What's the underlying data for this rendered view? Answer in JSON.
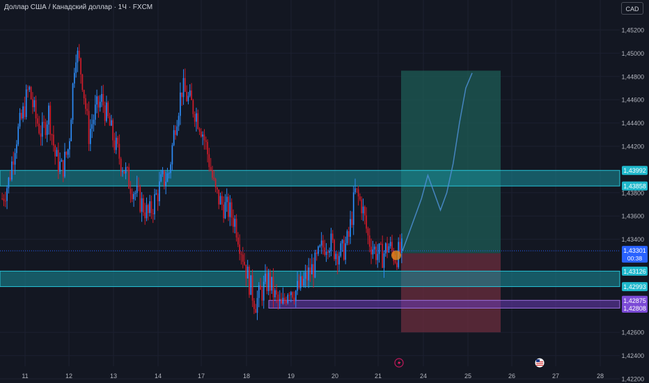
{
  "header": {
    "title": "Доллар США / Канадский доллар · 1Ч · FXCM",
    "currency": "CAD"
  },
  "colors": {
    "background": "#131722",
    "grid": "#1c2030",
    "up_candle": "#2d8bf5",
    "down_candle": "#d01c2a",
    "zone_fill": "#1a8f9c",
    "zone_border": "#26c6da",
    "support_zone_fill": "#6a3ab5",
    "support_zone_border": "#9c6fe0",
    "target_fill": "#1d5c55",
    "stop_fill": "#6b2d3d",
    "projection": "#4d8fd6",
    "last_price": "#2962ff",
    "axis_text": "#b2b5be"
  },
  "price_axis": {
    "ticks": [
      "1,45200",
      "1,45000",
      "1,44800",
      "1,44600",
      "1,44400",
      "1,44200",
      "1,43800",
      "1,43600",
      "1,43400",
      "1,42600",
      "1,42400",
      "1,42200"
    ],
    "labels": [
      {
        "text": "1,43992",
        "color": "#1fb8cc",
        "value": 1.43992
      },
      {
        "text": "1,43858",
        "color": "#1fb8cc",
        "value": 1.43858
      },
      {
        "text": "1,43126",
        "color": "#1fb8cc",
        "value": 1.43126
      },
      {
        "text": "1,42993",
        "color": "#1fb8cc",
        "value": 1.42993
      },
      {
        "text": "1,42875",
        "color": "#7b4bd6",
        "value": 1.42875
      },
      {
        "text": "1,42808",
        "color": "#7b4bd6",
        "value": 1.42808
      }
    ],
    "last_price": {
      "text": "1,43301",
      "countdown": "00:38",
      "value": 1.43301
    }
  },
  "time_axis": {
    "labels": [
      "11",
      "12",
      "13",
      "14",
      "17",
      "18",
      "19",
      "20",
      "21",
      "24",
      "25",
      "26",
      "27",
      "28"
    ]
  },
  "chart_data": {
    "type": "candlestick",
    "title": "Доллар США / Канадский доллар · 1Ч · FXCM",
    "xlabel": "",
    "ylabel": "",
    "ylim": [
      1.4212,
      1.453
    ],
    "x_tick_labels": [
      "11",
      "12",
      "13",
      "14",
      "17",
      "18",
      "19",
      "20",
      "21",
      "24",
      "25",
      "26",
      "27",
      "28"
    ],
    "y_tick_labels": [
      "1,45200",
      "1,45000",
      "1,44800",
      "1,44600",
      "1,44400",
      "1,44200",
      "1,43800",
      "1,43600",
      "1,43400",
      "1,42600",
      "1,42400",
      "1,42200"
    ],
    "close_path": [
      1.4375,
      1.439,
      1.4425,
      1.4445,
      1.447,
      1.4445,
      1.443,
      1.445,
      1.441,
      1.44,
      1.442,
      1.4505,
      1.448,
      1.443,
      1.445,
      1.446,
      1.444,
      1.442,
      1.4405,
      1.439,
      1.438,
      1.437,
      1.436,
      1.4375,
      1.439,
      1.4395,
      1.444,
      1.447,
      1.446,
      1.445,
      1.4435,
      1.441,
      1.438,
      1.437,
      1.4365,
      1.4355,
      1.433,
      1.4305,
      1.4285,
      1.4295,
      1.4305,
      1.429,
      1.428,
      1.43,
      1.4295,
      1.43,
      1.431,
      1.4318,
      1.4332,
      1.434,
      1.433,
      1.4328,
      1.434,
      1.438,
      1.437,
      1.434,
      1.433,
      1.4325,
      1.4335,
      1.4325,
      1.433
    ],
    "projection_path": [
      1.433,
      1.4345,
      1.436,
      1.4375,
      1.4395,
      1.438,
      1.4365,
      1.438,
      1.4405,
      1.444,
      1.447,
      1.4483
    ],
    "zones": [
      {
        "name": "resistance",
        "top": 1.43992,
        "bottom": 1.43858
      },
      {
        "name": "support",
        "top": 1.43126,
        "bottom": 1.42993
      },
      {
        "name": "demand",
        "top": 1.42875,
        "bottom": 1.42808
      }
    ],
    "position": {
      "entry": 1.4328,
      "target": 1.4485,
      "stop": 1.426
    }
  },
  "icons": {
    "events": [
      "lightning-event-icon",
      "us-flag-event-icon"
    ]
  }
}
